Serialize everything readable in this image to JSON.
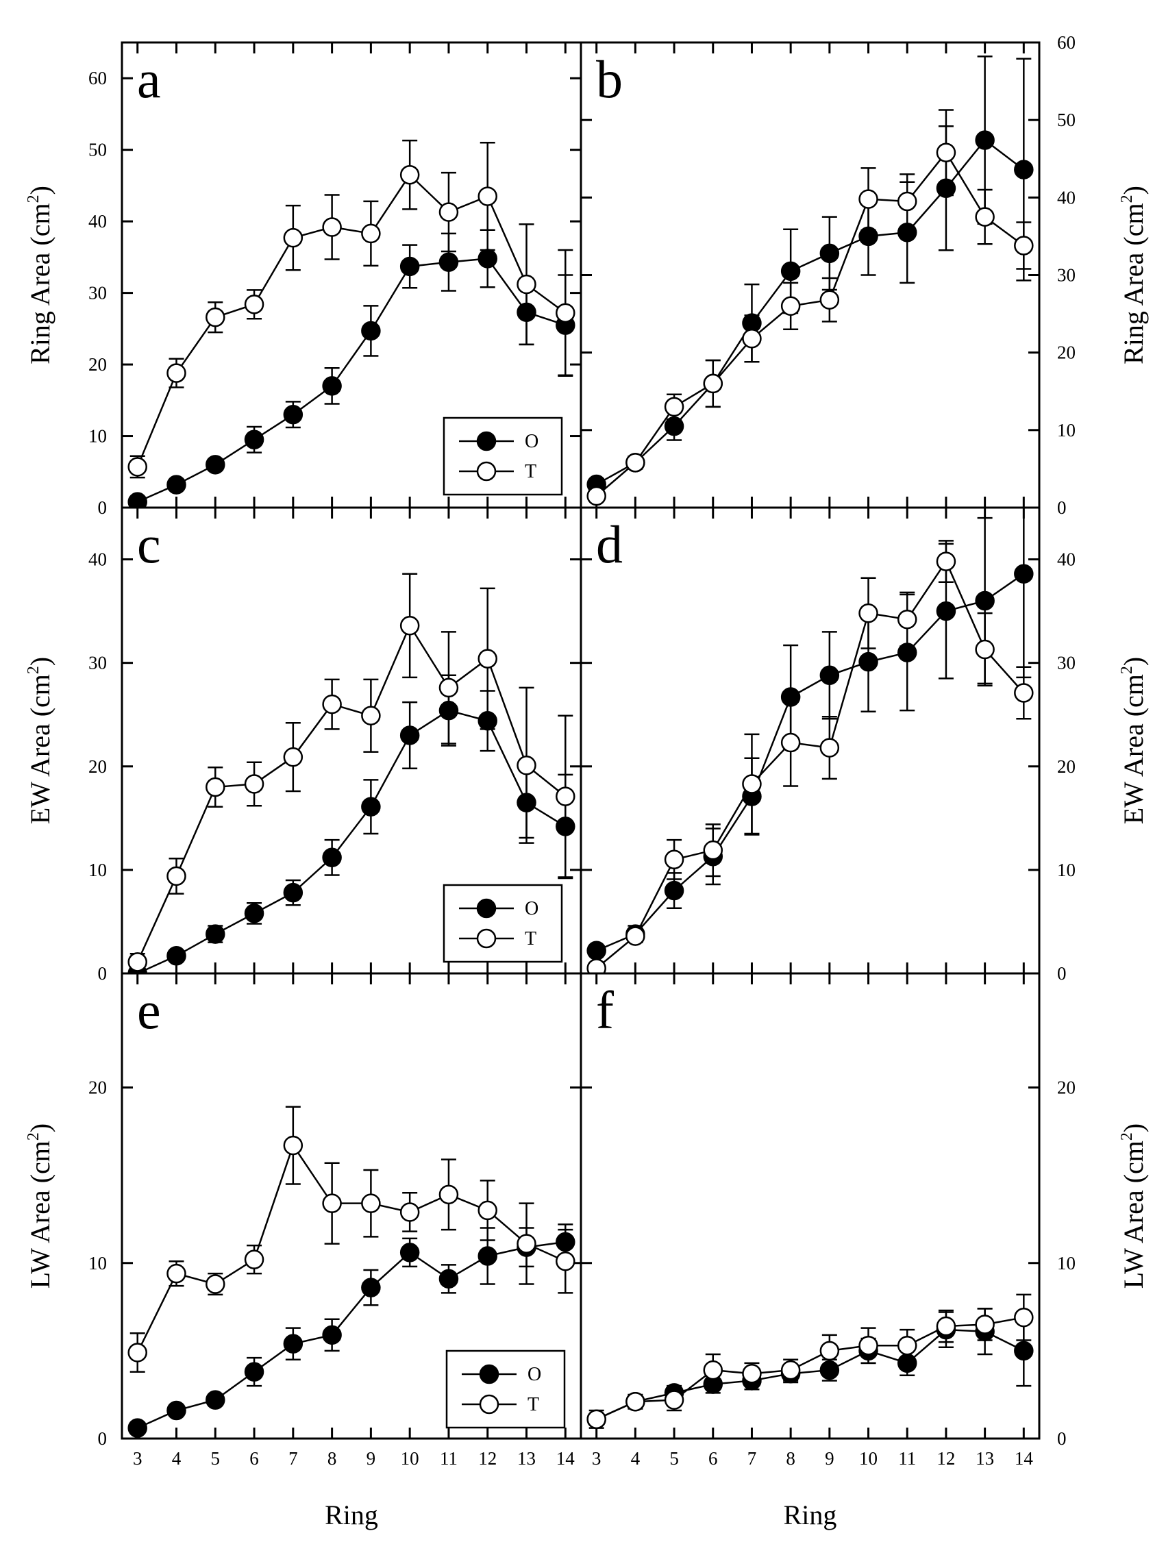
{
  "chart_data": [
    {
      "panel": "a",
      "type": "line",
      "ylabel": "Ring Area (cm",
      "ylabel_sup": "2",
      "ylabel_close": ")",
      "ylim": [
        0,
        65
      ],
      "yticks": [
        0,
        10,
        20,
        30,
        40,
        50,
        60
      ],
      "x": [
        3,
        4,
        5,
        6,
        7,
        8,
        9,
        10,
        11,
        12,
        13,
        14
      ],
      "legend": true,
      "series": [
        {
          "name": "O",
          "marker": "filled",
          "values": [
            0.8,
            3.2,
            6.0,
            9.5,
            13.0,
            17.0,
            24.7,
            33.7,
            34.3,
            34.8,
            27.3,
            25.5
          ],
          "errors": [
            0.4,
            0.6,
            0.8,
            1.8,
            1.8,
            2.5,
            3.5,
            3.0,
            4.0,
            4.0,
            4.5,
            7.0
          ]
        },
        {
          "name": "T",
          "marker": "open",
          "values": [
            5.7,
            18.8,
            26.6,
            28.4,
            37.7,
            39.2,
            38.3,
            46.5,
            41.3,
            43.5,
            31.2,
            27.2
          ],
          "errors": [
            1.5,
            2.0,
            2.1,
            2.0,
            4.5,
            4.5,
            4.5,
            4.8,
            5.5,
            7.5,
            8.4,
            8.8
          ]
        }
      ]
    },
    {
      "panel": "b",
      "type": "line",
      "ylabel": "Ring Area (cm",
      "ylabel_sup": "2",
      "ylabel_close": ")",
      "ylim": [
        0,
        60
      ],
      "yticks": [
        0,
        10,
        20,
        30,
        40,
        50,
        60
      ],
      "x": [
        3,
        4,
        5,
        6,
        7,
        8,
        9,
        10,
        11,
        12,
        13,
        14
      ],
      "legend": false,
      "series": [
        {
          "name": "O",
          "marker": "filled",
          "values": [
            3.0,
            5.8,
            10.5,
            16.0,
            23.8,
            30.5,
            32.8,
            35.0,
            35.5,
            41.2,
            47.4,
            43.6
          ],
          "errors": [
            0.5,
            0.8,
            1.8,
            3.0,
            5.0,
            5.4,
            4.7,
            5.0,
            6.5,
            8.0,
            10.8,
            14.3
          ]
        },
        {
          "name": "T",
          "marker": "open",
          "values": [
            1.5,
            5.8,
            13.0,
            16.0,
            21.8,
            26.0,
            26.8,
            39.8,
            39.5,
            45.8,
            37.5,
            33.8
          ],
          "errors": [
            0.5,
            0.5,
            1.6,
            3.0,
            3.0,
            3.0,
            2.8,
            4.0,
            3.5,
            5.5,
            3.5,
            3.0
          ]
        }
      ]
    },
    {
      "panel": "c",
      "type": "line",
      "ylabel": "EW Area (cm",
      "ylabel_sup": "2",
      "ylabel_close": ")",
      "ylim": [
        0,
        45
      ],
      "yticks": [
        0,
        10,
        20,
        30,
        40
      ],
      "x": [
        3,
        4,
        5,
        6,
        7,
        8,
        9,
        10,
        11,
        12,
        13,
        14
      ],
      "legend": true,
      "series": [
        {
          "name": "O",
          "marker": "filled",
          "values": [
            0.0,
            1.7,
            3.8,
            5.8,
            7.8,
            11.2,
            16.1,
            23.0,
            25.4,
            24.4,
            16.5,
            14.2
          ],
          "errors": [
            0.2,
            0.5,
            0.8,
            1.0,
            1.2,
            1.7,
            2.6,
            3.2,
            3.4,
            2.9,
            3.4,
            5.0
          ]
        },
        {
          "name": "T",
          "marker": "open",
          "values": [
            1.1,
            9.4,
            18.0,
            18.3,
            20.9,
            26.0,
            24.9,
            33.6,
            27.6,
            30.4,
            20.1,
            17.1
          ],
          "errors": [
            0.8,
            1.7,
            1.9,
            2.1,
            3.3,
            2.4,
            3.5,
            5.0,
            5.4,
            6.8,
            7.5,
            7.8
          ]
        }
      ]
    },
    {
      "panel": "d",
      "type": "line",
      "ylabel": "EW Area (cm",
      "ylabel_sup": "2",
      "ylabel_close": ")",
      "ylim": [
        0,
        45
      ],
      "yticks": [
        0,
        10,
        20,
        30,
        40
      ],
      "x": [
        3,
        4,
        5,
        6,
        7,
        8,
        9,
        10,
        11,
        12,
        13,
        14
      ],
      "legend": false,
      "series": [
        {
          "name": "O",
          "marker": "filled",
          "values": [
            2.2,
            3.8,
            8.0,
            11.3,
            17.1,
            26.7,
            28.8,
            30.1,
            31.0,
            35.0,
            36.0,
            38.6
          ],
          "errors": [
            0.4,
            0.8,
            1.7,
            2.7,
            3.7,
            5.0,
            4.2,
            4.8,
            5.6,
            6.5,
            8.0,
            10.0
          ]
        },
        {
          "name": "T",
          "marker": "open",
          "values": [
            0.5,
            3.6,
            11.0,
            11.9,
            18.3,
            22.3,
            21.8,
            34.8,
            34.2,
            39.8,
            31.3,
            27.1
          ],
          "errors": [
            0.4,
            0.6,
            1.9,
            2.5,
            4.8,
            4.2,
            3.0,
            3.4,
            2.6,
            2.0,
            3.5,
            2.5
          ]
        }
      ]
    },
    {
      "panel": "e",
      "type": "line",
      "ylabel": "LW Area (cm",
      "ylabel_sup": "2",
      "ylabel_close": ")",
      "ylim": [
        0,
        26.5
      ],
      "yticks": [
        0,
        10,
        20
      ],
      "x": [
        3,
        4,
        5,
        6,
        7,
        8,
        9,
        10,
        11,
        12,
        13,
        14
      ],
      "legend": true,
      "series": [
        {
          "name": "O",
          "marker": "filled",
          "values": [
            0.6,
            1.6,
            2.2,
            3.8,
            5.4,
            5.9,
            8.6,
            10.6,
            9.1,
            10.4,
            10.9,
            11.2
          ],
          "errors": [
            0.2,
            0.3,
            0.3,
            0.8,
            0.9,
            0.9,
            1.0,
            0.8,
            0.8,
            1.6,
            1.1,
            1.0
          ]
        },
        {
          "name": "T",
          "marker": "open",
          "values": [
            4.9,
            9.4,
            8.8,
            10.2,
            16.7,
            13.4,
            13.4,
            12.9,
            13.9,
            13.0,
            11.1,
            10.1
          ],
          "errors": [
            1.1,
            0.7,
            0.6,
            0.8,
            2.2,
            2.3,
            1.9,
            1.1,
            2.0,
            1.7,
            2.3,
            1.8
          ]
        }
      ]
    },
    {
      "panel": "f",
      "type": "line",
      "ylabel": "LW Area (cm",
      "ylabel_sup": "2",
      "ylabel_close": ")",
      "ylim": [
        0,
        26.5
      ],
      "yticks": [
        0,
        10,
        20
      ],
      "x": [
        3,
        4,
        5,
        6,
        7,
        8,
        9,
        10,
        11,
        12,
        13,
        14
      ],
      "legend": false,
      "series": [
        {
          "name": "O",
          "marker": "filled",
          "values": [
            1.1,
            2.1,
            2.6,
            3.1,
            3.3,
            3.7,
            3.9,
            5.0,
            4.3,
            6.2,
            6.1,
            5.0
          ],
          "errors": [
            0.3,
            0.3,
            0.4,
            0.5,
            0.5,
            0.5,
            0.6,
            0.7,
            0.7,
            1.0,
            1.3,
            2.0
          ]
        },
        {
          "name": "T",
          "marker": "open",
          "values": [
            1.1,
            2.1,
            2.2,
            3.9,
            3.7,
            3.9,
            5.0,
            5.3,
            5.3,
            6.4,
            6.5,
            6.9
          ],
          "errors": [
            0.5,
            0.4,
            0.6,
            0.9,
            0.6,
            0.6,
            0.9,
            1.0,
            0.9,
            0.9,
            0.9,
            1.3
          ]
        }
      ]
    }
  ],
  "x_axis": {
    "label": "Ring",
    "tick_labels": [
      "3",
      "4",
      "5",
      "6",
      "7",
      "8",
      "9",
      "10",
      "11",
      "12",
      "13",
      "14"
    ]
  },
  "legend": {
    "entries": [
      "O",
      "T"
    ]
  }
}
